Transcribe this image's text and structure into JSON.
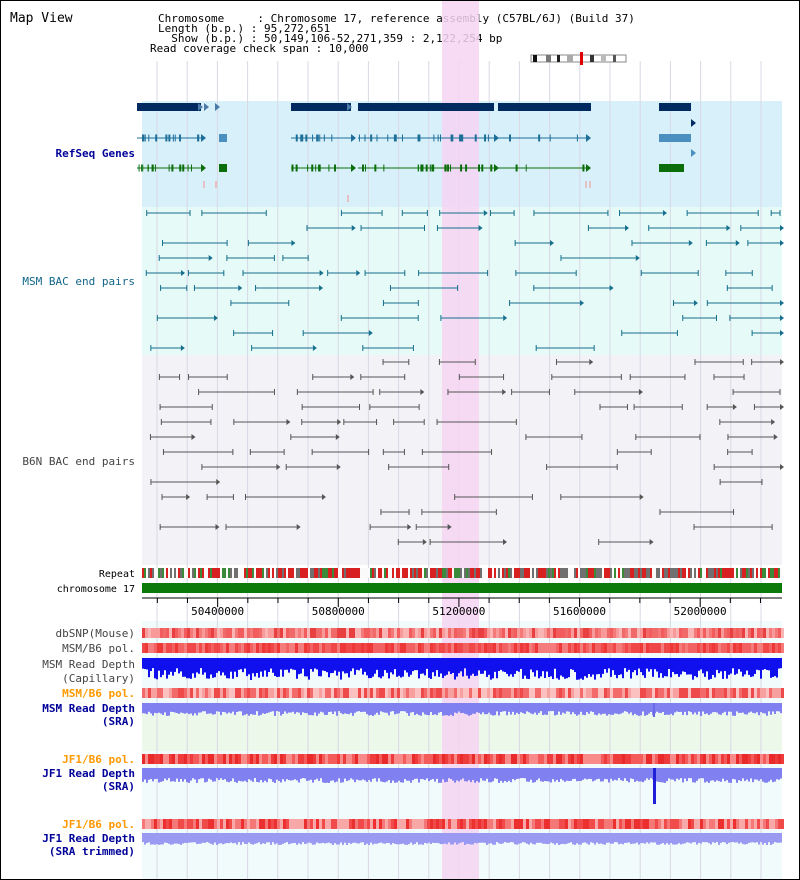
{
  "header": {
    "title": "Map View",
    "info_lines": [
      "Chromosome     : Chromosome 17, reference assembly (C57BL/6J) (Build 37)",
      "Length (b.p.) : 95,272,651",
      "  Show (b.p.) : 50,149,106-52,271,359 : 2,122,254 bp",
      "Read coverage check span : 10,000"
    ]
  },
  "tracks": {
    "refseq": "RefSeq Genes",
    "msm_bac": "MSM BAC end pairs",
    "b6n_bac": "B6N BAC end pairs",
    "repeat": "Repeat",
    "chromosome": "chromosome 17",
    "dbsnp": "dbSNP(Mouse)",
    "msm_b6_pol": "MSM/B6 pol.",
    "msm_depth_cap": [
      "MSM Read Depth",
      "(Capillary)"
    ],
    "msm_b6_pol2": "MSM/B6 pol.",
    "msm_depth_sra": [
      "MSM Read Depth",
      "(SRA)"
    ],
    "jf1_b6_pol": "JF1/B6 pol.",
    "jf1_depth_sra": [
      "JF1 Read Depth",
      "(SRA)"
    ],
    "jf1_b6_pol2": "JF1/B6 pol.",
    "jf1_depth_trim": [
      "JF1 Read Depth",
      "(SRA trimmed)"
    ]
  },
  "axis": {
    "ticks": [
      "50400000",
      "50800000",
      "51200000",
      "51600000",
      "52000000"
    ],
    "start": 50149106,
    "end": 52271359
  },
  "colors": {
    "refseq_bg": "#d8f0fa",
    "msm_bg": "#e6faf8",
    "b6n_bg": "#f3f3f7",
    "highlight": "#f6d4f2",
    "gene_dark": "#002a60",
    "gene_mid": "#1d6f9a",
    "gene_green": "#0b6e0b",
    "msm_line": "#166f8d",
    "b6n_line": "#555555",
    "chrom": "#0b7a0b",
    "depth_blue": "#1010ee",
    "depth_light": "#8080f0",
    "label_blue": "#000099",
    "label_teal": "#116688",
    "label_orange": "#ff9900"
  }
}
